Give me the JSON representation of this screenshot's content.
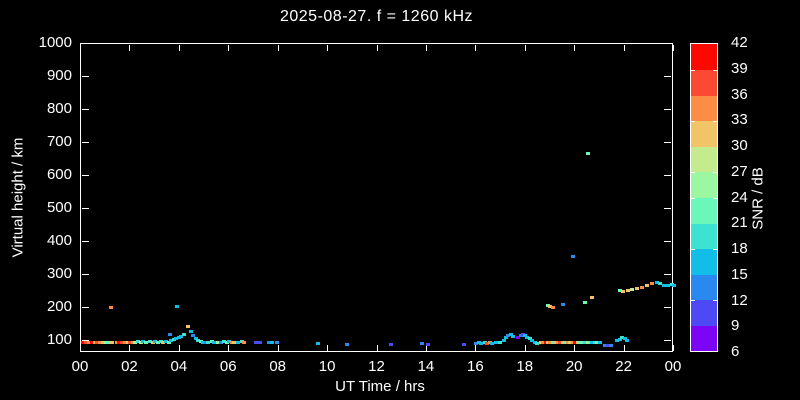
{
  "title": "2025-08-27. f = 1260 kHz",
  "x_axis": {
    "label": "UT Time / hrs",
    "tick_labels": [
      "00",
      "02",
      "04",
      "06",
      "08",
      "10",
      "12",
      "14",
      "16",
      "18",
      "20",
      "22",
      "00"
    ],
    "tick_hours": [
      0,
      2,
      4,
      6,
      8,
      10,
      12,
      14,
      16,
      18,
      20,
      22,
      24
    ],
    "range_hours": [
      0,
      24
    ]
  },
  "y_axis": {
    "label": "Virtual height / km",
    "tick_values": [
      100,
      200,
      300,
      400,
      500,
      600,
      700,
      800,
      900,
      1000
    ],
    "range": [
      65,
      1000
    ]
  },
  "colorbar": {
    "label": "SNR / dB",
    "tick_values": [
      42,
      39,
      36,
      33,
      30,
      27,
      24,
      21,
      18,
      15,
      12,
      9,
      6
    ],
    "segments": [
      {
        "from": 6,
        "to": 9,
        "color": "#7d05f5"
      },
      {
        "from": 9,
        "to": 12,
        "color": "#4d49f5"
      },
      {
        "from": 12,
        "to": 15,
        "color": "#2989f0"
      },
      {
        "from": 15,
        "to": 18,
        "color": "#12bde8"
      },
      {
        "from": 18,
        "to": 21,
        "color": "#3ee2d0"
      },
      {
        "from": 21,
        "to": 24,
        "color": "#69f7ba"
      },
      {
        "from": 24,
        "to": 27,
        "color": "#9cf7a2"
      },
      {
        "from": 27,
        "to": 30,
        "color": "#c4eb8e"
      },
      {
        "from": 30,
        "to": 33,
        "color": "#f1c468"
      },
      {
        "from": 33,
        "to": 36,
        "color": "#fb8d46"
      },
      {
        "from": 36,
        "to": 39,
        "color": "#fb4a31"
      },
      {
        "from": 39,
        "to": 42,
        "color": "#fb0800"
      }
    ]
  },
  "chart_data": {
    "type": "scatter",
    "title": "2025-08-27. f = 1260 kHz",
    "xlabel": "UT Time / hrs",
    "ylabel": "Virtual height / km",
    "color_scale_label": "SNR / dB",
    "x_range": [
      0,
      24
    ],
    "y_range": [
      65,
      1000
    ],
    "legend": "none",
    "grid": false,
    "point_format": "[hours_UT, virtual_height_km, snr_dB]",
    "points": [
      [
        0.08,
        98,
        40
      ],
      [
        0.2,
        99,
        37
      ],
      [
        0.33,
        98,
        34
      ],
      [
        0.45,
        99,
        40
      ],
      [
        0.55,
        98,
        31
      ],
      [
        0.66,
        99,
        37
      ],
      [
        0.78,
        98,
        34
      ],
      [
        0.9,
        99,
        31
      ],
      [
        1.0,
        98,
        25
      ],
      [
        1.1,
        97,
        22
      ],
      [
        1.25,
        98,
        31
      ],
      [
        1.2,
        203,
        34
      ],
      [
        1.45,
        98,
        34
      ],
      [
        1.55,
        99,
        40
      ],
      [
        1.65,
        98,
        37
      ],
      [
        1.78,
        98,
        34
      ],
      [
        1.9,
        99,
        31
      ],
      [
        2.0,
        98,
        37
      ],
      [
        2.1,
        98,
        34
      ],
      [
        2.2,
        99,
        25
      ],
      [
        2.3,
        100,
        19
      ],
      [
        2.42,
        99,
        28
      ],
      [
        2.52,
        100,
        16
      ],
      [
        2.63,
        99,
        22
      ],
      [
        2.78,
        100,
        19
      ],
      [
        2.9,
        99,
        31
      ],
      [
        3.0,
        100,
        16
      ],
      [
        3.1,
        99,
        22
      ],
      [
        3.22,
        100,
        19
      ],
      [
        3.33,
        99,
        31
      ],
      [
        3.45,
        100,
        16
      ],
      [
        3.55,
        99,
        22
      ],
      [
        3.6,
        124,
        13
      ],
      [
        3.65,
        103,
        16
      ],
      [
        3.75,
        106,
        19
      ],
      [
        3.85,
        109,
        16
      ],
      [
        3.9,
        206,
        16
      ],
      [
        3.95,
        112,
        16
      ],
      [
        4.05,
        116,
        16
      ],
      [
        4.15,
        121,
        19
      ],
      [
        4.35,
        148,
        31
      ],
      [
        4.45,
        131,
        16
      ],
      [
        4.55,
        119,
        13
      ],
      [
        4.65,
        109,
        16
      ],
      [
        4.75,
        103,
        19
      ],
      [
        4.85,
        100,
        22
      ],
      [
        4.95,
        99,
        16
      ],
      [
        5.05,
        98,
        13
      ],
      [
        5.15,
        99,
        19
      ],
      [
        5.3,
        100,
        22
      ],
      [
        5.4,
        99,
        16
      ],
      [
        5.55,
        98,
        25
      ],
      [
        5.65,
        99,
        13
      ],
      [
        5.78,
        100,
        19
      ],
      [
        5.9,
        99,
        22
      ],
      [
        6.0,
        100,
        16
      ],
      [
        6.1,
        99,
        34
      ],
      [
        6.2,
        98,
        31
      ],
      [
        6.35,
        99,
        16
      ],
      [
        6.5,
        100,
        19
      ],
      [
        6.6,
        99,
        34
      ],
      [
        7.1,
        97,
        10
      ],
      [
        7.25,
        97,
        10
      ],
      [
        7.6,
        98,
        13
      ],
      [
        7.75,
        99,
        16
      ],
      [
        7.95,
        98,
        13
      ],
      [
        9.6,
        95,
        16
      ],
      [
        10.75,
        92,
        13
      ],
      [
        12.55,
        92,
        10
      ],
      [
        13.8,
        94,
        13
      ],
      [
        14.05,
        92,
        10
      ],
      [
        15.5,
        91,
        10
      ],
      [
        16.0,
        96,
        13
      ],
      [
        16.1,
        97,
        16
      ],
      [
        16.2,
        96,
        16
      ],
      [
        16.35,
        97,
        19
      ],
      [
        16.45,
        96,
        37
      ],
      [
        16.55,
        97,
        34
      ],
      [
        16.65,
        96,
        16
      ],
      [
        16.8,
        97,
        16
      ],
      [
        16.95,
        98,
        19
      ],
      [
        17.1,
        104,
        16
      ],
      [
        17.2,
        112,
        16
      ],
      [
        17.3,
        118,
        13
      ],
      [
        17.4,
        121,
        16
      ],
      [
        17.5,
        117,
        16
      ],
      [
        17.7,
        113,
        7
      ],
      [
        17.8,
        120,
        13
      ],
      [
        17.88,
        124,
        10
      ],
      [
        17.97,
        118,
        16
      ],
      [
        18.07,
        114,
        16
      ],
      [
        18.17,
        110,
        19
      ],
      [
        18.27,
        104,
        16
      ],
      [
        18.37,
        99,
        16
      ],
      [
        18.47,
        96,
        19
      ],
      [
        18.6,
        97,
        31
      ],
      [
        18.7,
        98,
        34
      ],
      [
        18.8,
        97,
        40
      ],
      [
        18.9,
        98,
        31
      ],
      [
        19.0,
        97,
        34
      ],
      [
        19.1,
        98,
        22
      ],
      [
        19.2,
        97,
        31
      ],
      [
        19.3,
        98,
        34
      ],
      [
        19.4,
        97,
        37
      ],
      [
        19.5,
        98,
        31
      ],
      [
        19.6,
        97,
        22
      ],
      [
        19.7,
        98,
        34
      ],
      [
        19.8,
        97,
        31
      ],
      [
        19.9,
        98,
        34
      ],
      [
        20.0,
        97,
        40
      ],
      [
        20.1,
        98,
        31
      ],
      [
        20.2,
        97,
        22
      ],
      [
        20.3,
        98,
        22
      ],
      [
        20.4,
        97,
        19
      ],
      [
        20.5,
        98,
        25
      ],
      [
        20.6,
        97,
        22
      ],
      [
        20.7,
        98,
        16
      ],
      [
        20.8,
        97,
        19
      ],
      [
        20.9,
        98,
        22
      ],
      [
        21.0,
        97,
        16
      ],
      [
        21.2,
        90,
        13
      ],
      [
        21.32,
        88,
        10
      ],
      [
        21.45,
        90,
        13
      ],
      [
        21.7,
        103,
        16
      ],
      [
        21.8,
        108,
        16
      ],
      [
        21.9,
        112,
        19
      ],
      [
        22.0,
        110,
        16
      ],
      [
        22.08,
        105,
        16
      ],
      [
        18.9,
        210,
        22
      ],
      [
        19.0,
        208,
        31
      ],
      [
        19.1,
        205,
        34
      ],
      [
        19.5,
        212,
        13
      ],
      [
        19.9,
        360,
        13
      ],
      [
        20.5,
        671,
        22
      ],
      [
        20.4,
        220,
        22
      ],
      [
        20.7,
        233,
        31
      ],
      [
        21.8,
        257,
        22
      ],
      [
        21.95,
        254,
        31
      ],
      [
        22.15,
        256,
        31
      ],
      [
        22.3,
        258,
        28
      ],
      [
        22.5,
        262,
        31
      ],
      [
        22.7,
        266,
        34
      ],
      [
        22.9,
        272,
        31
      ],
      [
        23.1,
        276,
        34
      ],
      [
        23.3,
        280,
        16
      ],
      [
        23.45,
        276,
        19
      ],
      [
        23.6,
        270,
        16
      ],
      [
        23.75,
        272,
        16
      ],
      [
        23.9,
        274,
        19
      ],
      [
        23.98,
        272,
        16
      ]
    ]
  }
}
